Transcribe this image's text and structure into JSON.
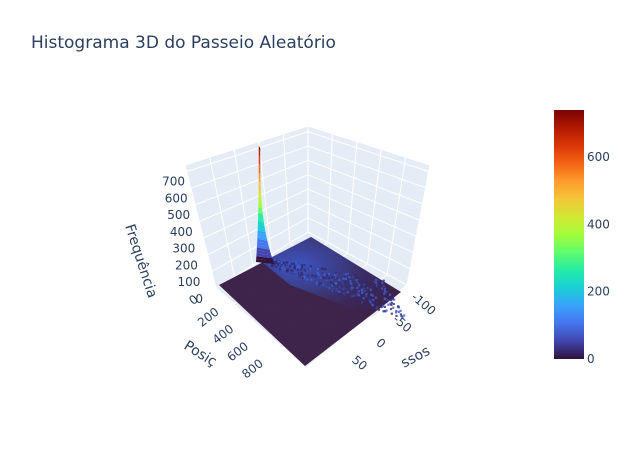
{
  "title": "Histograma 3D do Passeio Aleatório",
  "chart_data": {
    "type": "surface",
    "title": "Histograma 3D do Passeio Aleatório",
    "axes": {
      "x": {
        "title": "Passos",
        "visible_title": "ssos",
        "ticks": [
          -100,
          -50,
          0,
          50
        ]
      },
      "y": {
        "title": "Posição",
        "visible_title": "Posiç",
        "ticks": [
          0,
          200,
          400,
          600,
          800
        ],
        "visible_tick_labels": [
          "0",
          "200",
          "400",
          "600",
          "800"
        ]
      },
      "z": {
        "title": "Frequência",
        "ticks": [
          0,
          100,
          200,
          300,
          400,
          500,
          600,
          700
        ],
        "range": [
          0,
          740
        ]
      }
    },
    "peak_frequency": 735,
    "colorscale": "turbo",
    "colorbar": {
      "ticks": [
        0,
        200,
        400,
        600
      ],
      "range": [
        0,
        740
      ],
      "gradient_hex": [
        "#30123b",
        "#4145ab",
        "#4675ed",
        "#39a2fc",
        "#1bcfd4",
        "#24eca6",
        "#61fc6c",
        "#a4fc3b",
        "#d1e834",
        "#f3c63a",
        "#fe9b2d",
        "#f36315",
        "#d93806",
        "#b11901",
        "#7a0402"
      ]
    },
    "grid": true,
    "background_pane": "#e5ecf6"
  }
}
